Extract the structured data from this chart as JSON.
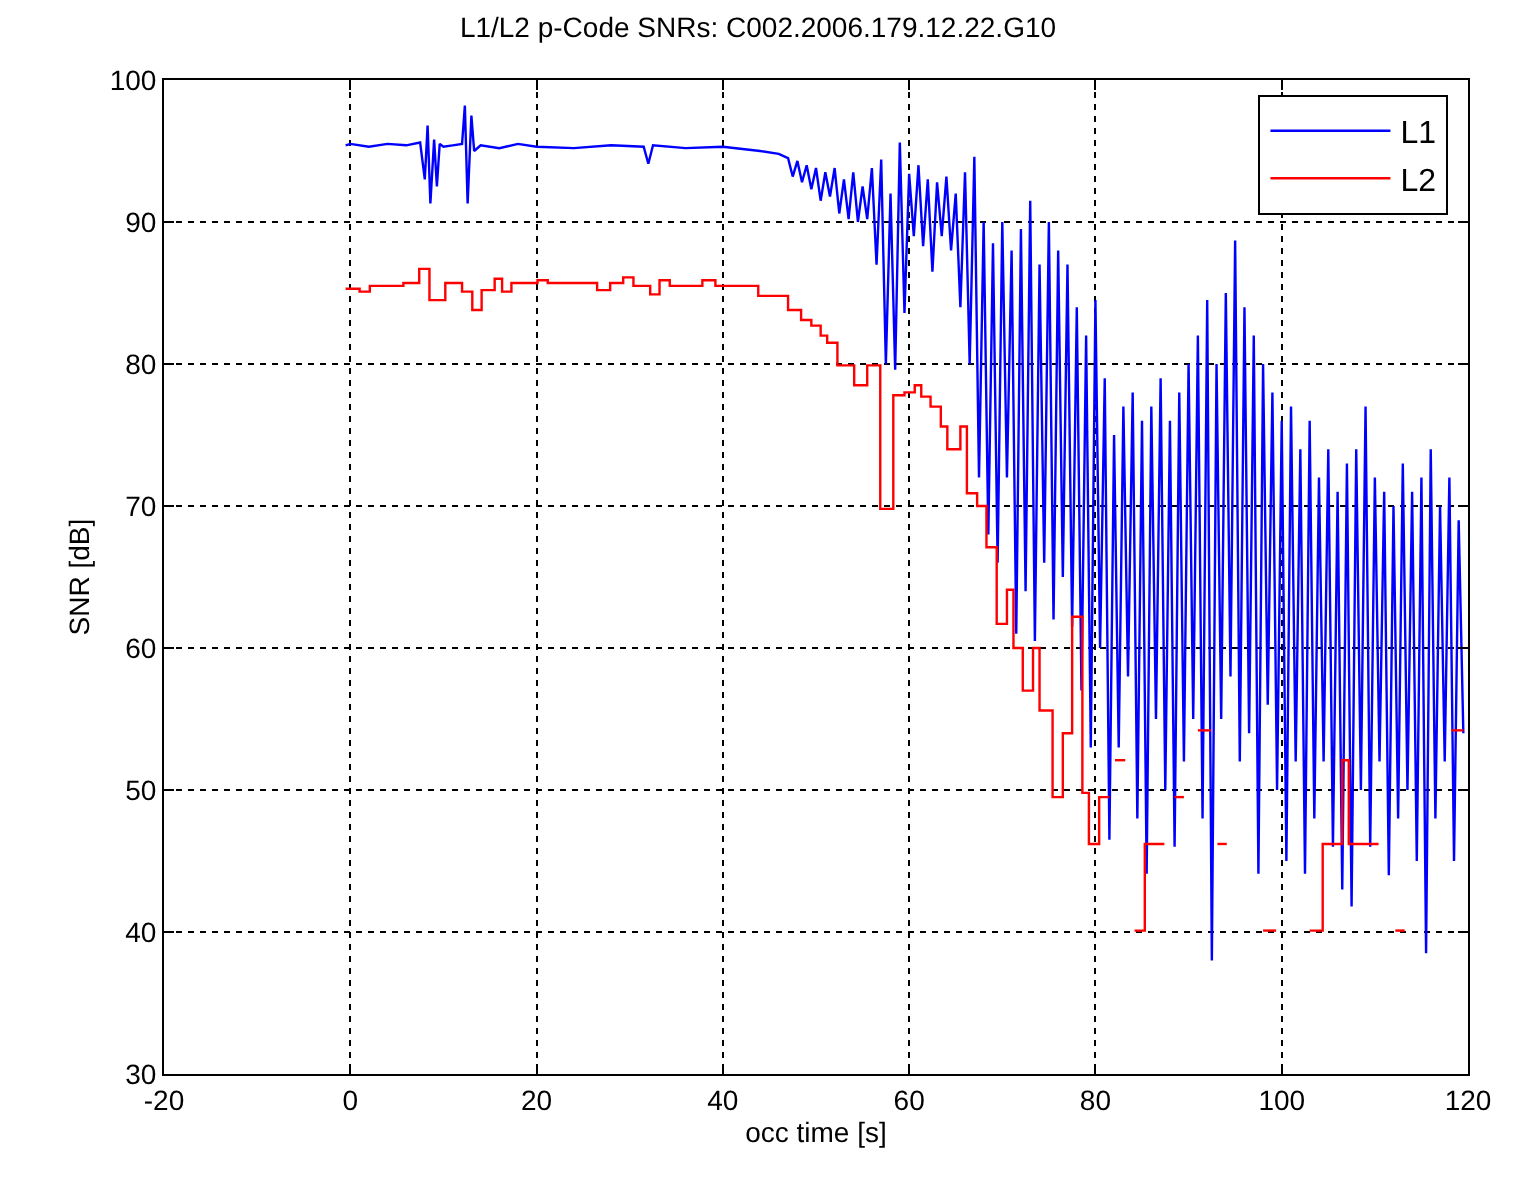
{
  "chart_data": {
    "type": "line",
    "title": "L1/L2 p-Code SNRs: C002.2006.179.12.22.G10",
    "xlabel": "occ time [s]",
    "ylabel": "SNR [dB]",
    "xlim": [
      -20,
      120
    ],
    "xticks": [
      -20,
      0,
      20,
      40,
      60,
      80,
      100,
      120
    ],
    "ylim": [
      30,
      100
    ],
    "yticks": [
      30,
      40,
      50,
      60,
      70,
      80,
      90,
      100
    ],
    "grid": true,
    "legend": "top right",
    "marker": "none",
    "line_style": "solid",
    "series": [
      {
        "name": "L1",
        "color": "#0000ff",
        "type": "line",
        "x": [
          -0.5,
          0,
          2,
          4,
          6,
          7.5,
          8,
          8.3,
          8.6,
          9,
          9.3,
          9.6,
          10,
          11,
          12,
          12.3,
          12.6,
          13,
          13.3,
          14,
          16,
          18,
          20,
          24,
          28,
          31.5,
          32,
          32.5,
          36,
          40,
          44,
          46,
          47,
          47.5,
          48,
          48.5,
          49,
          49.5,
          50,
          50.5,
          51,
          51.5,
          52,
          52.5,
          53,
          53.5,
          54,
          54.5,
          55,
          55.5,
          56,
          56.5,
          57,
          57.5,
          58,
          58.5,
          59,
          59.5,
          60,
          60.5,
          61,
          61.5,
          62,
          62.5,
          63,
          63.5,
          64,
          64.5,
          65,
          65.5,
          66,
          66.5,
          67,
          67.5,
          68,
          68.5,
          69,
          69.5,
          70,
          70.5,
          71,
          71.5,
          72,
          72.5,
          73,
          73.5,
          74,
          74.5,
          75,
          75.5,
          76,
          76.5,
          77,
          77.5,
          78,
          78.5,
          79,
          79.5,
          80,
          80.5,
          81,
          81.5,
          82,
          82.5,
          83,
          83.5,
          84,
          84.5,
          85,
          85.5,
          86,
          86.5,
          87,
          87.5,
          88,
          88.5,
          89,
          89.5,
          90,
          90.5,
          91,
          91.5,
          92,
          92.5,
          93,
          93.5,
          94,
          94.5,
          95,
          95.5,
          96,
          96.5,
          97,
          97.5,
          98,
          98.5,
          99,
          99.5,
          100,
          100.5,
          101,
          101.5,
          102,
          102.5,
          103,
          103.5,
          104,
          104.5,
          105,
          105.5,
          106,
          106.5,
          107,
          107.5,
          108,
          108.5,
          109,
          109.5,
          110,
          110.5,
          111,
          111.5,
          112,
          112.5,
          113,
          113.5,
          114,
          114.5,
          115,
          115.5,
          116,
          116.5,
          117,
          117.5,
          118,
          118.5,
          119,
          119.5
        ],
        "values": [
          95.4,
          95.5,
          95.3,
          95.5,
          95.4,
          95.6,
          93,
          96.8,
          91.3,
          95.8,
          92.5,
          95.5,
          95.3,
          95.4,
          95.5,
          98.2,
          91.3,
          97.5,
          95,
          95.4,
          95.2,
          95.5,
          95.3,
          95.2,
          95.4,
          95.3,
          94.1,
          95.4,
          95.2,
          95.3,
          95,
          94.8,
          94.5,
          93.2,
          94.3,
          92.8,
          94,
          92.3,
          93.8,
          91.5,
          93.5,
          91.8,
          93.8,
          90.6,
          93,
          90.2,
          93.5,
          90,
          92.5,
          90.2,
          93.8,
          87,
          94.4,
          80,
          92,
          79.6,
          95.6,
          83.6,
          93.4,
          89,
          94,
          88.3,
          93,
          86.5,
          92.8,
          89,
          93.2,
          88,
          92,
          84,
          93.5,
          80,
          94.6,
          72,
          90,
          68,
          88.5,
          66,
          90,
          72,
          88,
          61,
          89.5,
          64,
          91.5,
          60.5,
          87,
          66,
          90,
          62,
          88,
          65,
          87,
          61.5,
          84,
          57,
          82,
          53,
          84.5,
          60,
          79,
          46.5,
          75,
          53,
          77,
          58,
          78,
          48,
          76,
          44.1,
          77,
          55,
          79,
          50,
          76,
          46,
          78,
          52,
          80,
          55,
          82,
          48,
          84.5,
          38,
          80,
          55,
          85,
          58,
          88.7,
          52,
          84,
          54,
          82,
          44.1,
          80,
          56,
          78,
          50,
          76,
          45,
          77,
          52,
          74,
          44.1,
          76,
          48,
          72,
          52,
          74,
          46,
          71,
          43,
          73,
          41.8,
          74,
          50,
          77,
          46,
          72,
          52,
          71,
          44,
          70,
          48,
          73,
          50,
          71,
          45,
          72,
          38.5,
          74,
          48,
          70,
          52,
          72,
          45,
          69,
          54
        ]
      },
      {
        "name": "L2",
        "color": "#ff0000",
        "type": "step",
        "x": [
          -0.5,
          1,
          2.1,
          5.7,
          7.4,
          8.5,
          10.2,
          12,
          13.1,
          14.1,
          15.5,
          16.3,
          17.3,
          20.1,
          21.2,
          26.5,
          27.9,
          29.3,
          30.4,
          32.2,
          33.2,
          34.3,
          37.8,
          39.2,
          43.8,
          47,
          48.4,
          49.5,
          50.5,
          51.2,
          52.3,
          54.1,
          55.5,
          56.9,
          58.3,
          59.5,
          60.6,
          61.3,
          62.3,
          63.4,
          64.1,
          65.5,
          66.2,
          67.3,
          68.3,
          69.4,
          70.5,
          71.2,
          72.2,
          73.3,
          74,
          75.4,
          76.5,
          77.5,
          78.6,
          79.3,
          80.4,
          81.5,
          82.1,
          83.2,
          84.2,
          85.3,
          87.4,
          88.5,
          89.5,
          91,
          92.4,
          93.1,
          94.1,
          98,
          99.4,
          103,
          104.4,
          106.5,
          107.2,
          110.4,
          112.2,
          113.2,
          118.2,
          119.5
        ],
        "values": [
          85.3,
          85.1,
          85.5,
          85.7,
          86.7,
          84.5,
          85.7,
          85.1,
          83.8,
          85.2,
          86,
          85.1,
          85.7,
          85.9,
          85.7,
          85.2,
          85.7,
          86.1,
          85.5,
          84.9,
          85.9,
          85.5,
          85.9,
          85.5,
          84.8,
          83.8,
          83.1,
          82.7,
          82,
          81.5,
          79.9,
          78.5,
          79.9,
          69.8,
          77.8,
          78,
          78.5,
          77.7,
          77,
          75.6,
          74,
          75.6,
          70.9,
          70,
          67.1,
          61.7,
          64.1,
          60,
          57,
          60,
          55.6,
          49.5,
          54,
          62.2,
          49.8,
          46.2,
          49.5,
          null,
          52.1,
          null,
          40.1,
          46.2,
          null,
          49.5,
          null,
          54.2,
          null,
          46.2,
          null,
          40.1,
          null,
          40.1,
          46.2,
          52.1,
          46.2,
          null,
          40.1,
          null,
          54.2,
          54.2
        ]
      }
    ]
  }
}
